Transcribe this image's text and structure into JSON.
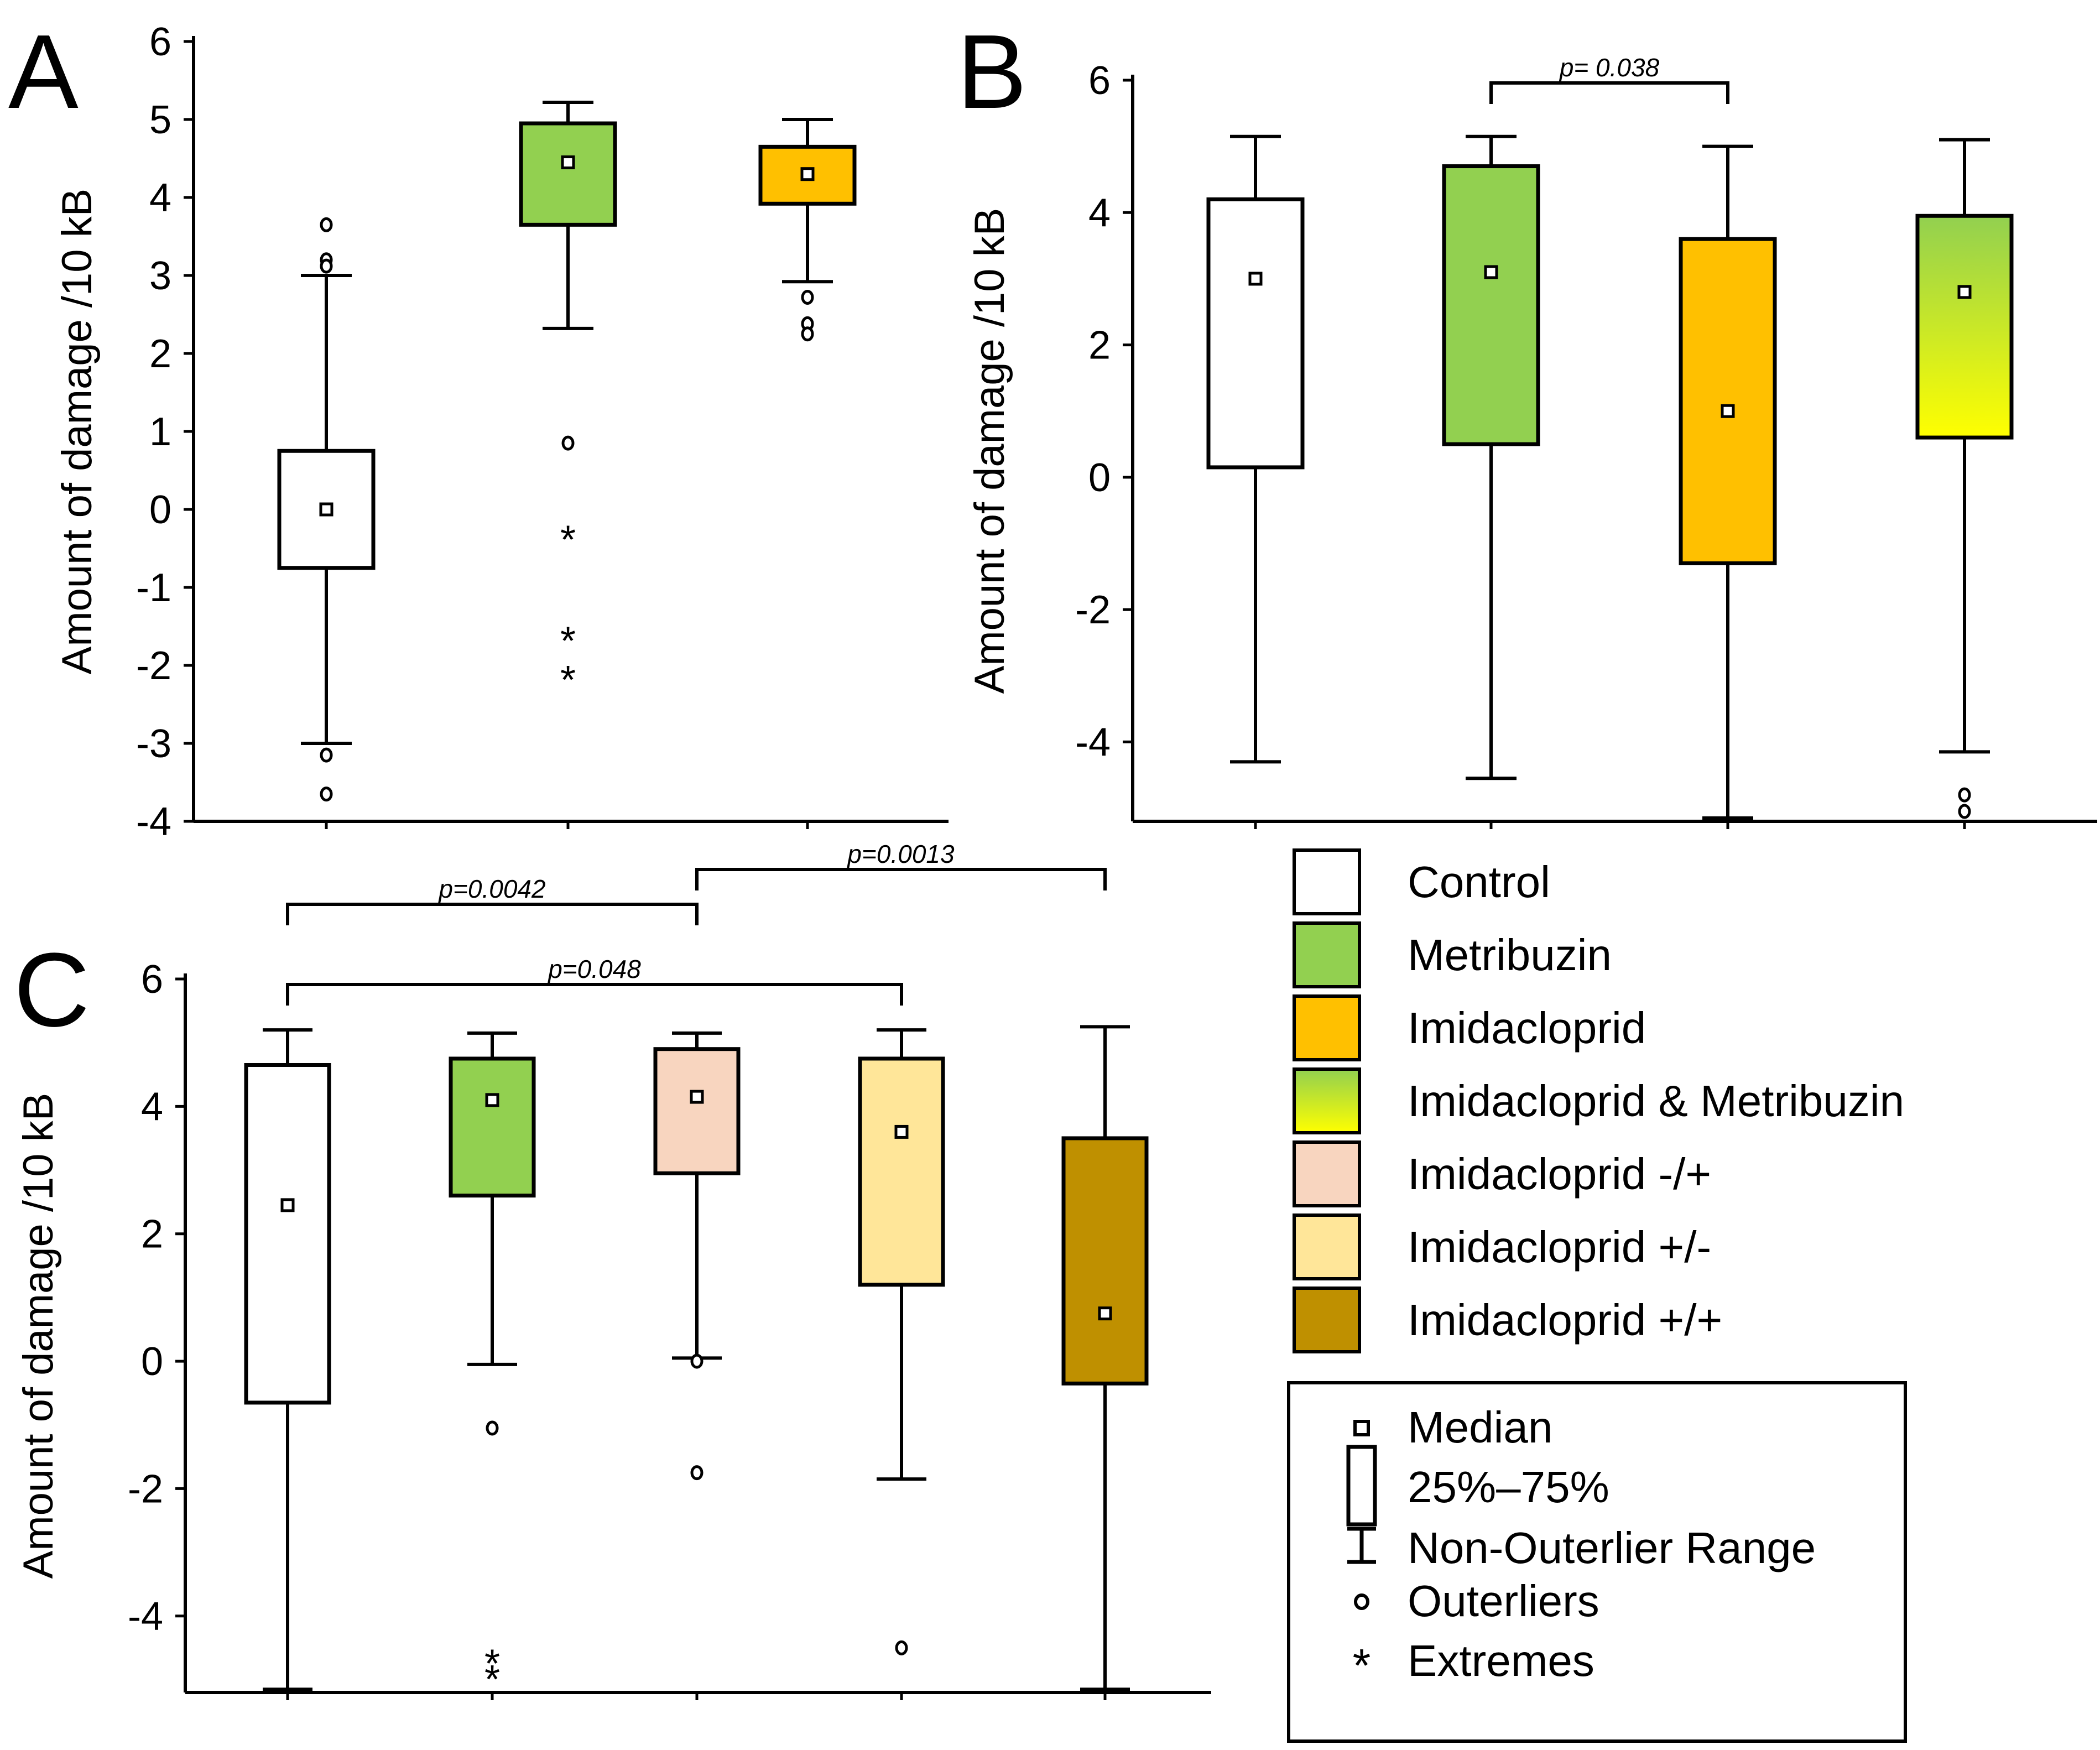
{
  "chart_data": [
    {
      "type": "box",
      "panel": "A",
      "ylabel": "Amount of damage /10 kB",
      "ylim": [
        -4,
        6
      ],
      "yticks": [
        -4,
        -3,
        -2,
        -1,
        0,
        1,
        2,
        3,
        4,
        5,
        6
      ],
      "boxes": [
        {
          "name": "Control",
          "color": "#ffffff",
          "median": 0.0,
          "q1": -0.75,
          "q3": 0.75,
          "whisker_low": -3.0,
          "whisker_high": 3.0,
          "outliers": [
            3.65,
            3.2,
            3.12,
            -3.15,
            -3.65
          ],
          "extremes": []
        },
        {
          "name": "Metribuzin",
          "color": "#92d050",
          "median": 4.45,
          "q1": 3.65,
          "q3": 4.95,
          "whisker_low": 2.32,
          "whisker_high": 5.22,
          "outliers": [
            0.85
          ],
          "extremes": [
            -0.35,
            -1.65,
            -2.15
          ]
        },
        {
          "name": "Imidacloprid",
          "color": "#ffc000",
          "median": 4.3,
          "q1": 3.92,
          "q3": 4.65,
          "whisker_low": 2.92,
          "whisker_high": 5.0,
          "outliers": [
            2.72,
            2.38,
            2.25
          ],
          "extremes": []
        }
      ]
    },
    {
      "type": "box",
      "panel": "B",
      "ylabel": "Amount of damage /10 kB",
      "ylim": [
        -5.2,
        6
      ],
      "yticks": [
        -4,
        -2,
        0,
        2,
        4,
        6
      ],
      "boxes": [
        {
          "name": "Control",
          "color": "#ffffff",
          "median": 3.0,
          "q1": 0.15,
          "q3": 4.2,
          "whisker_low": -4.3,
          "whisker_high": 5.15,
          "outliers": [],
          "extremes": []
        },
        {
          "name": "Metribuzin",
          "color": "#92d050",
          "median": 3.1,
          "q1": 0.5,
          "q3": 4.7,
          "whisker_low": -4.55,
          "whisker_high": 5.15,
          "outliers": [],
          "extremes": []
        },
        {
          "name": "Imidacloprid",
          "color": "#ffc000",
          "median": 1.0,
          "q1": -1.3,
          "q3": 3.6,
          "whisker_low": -5.15,
          "whisker_high": 5.0,
          "outliers": [],
          "extremes": []
        },
        {
          "name": "Imidacloprid & Metribuzin",
          "color": "gradient",
          "median": 2.8,
          "q1": 0.6,
          "q3": 3.95,
          "whisker_low": -4.15,
          "whisker_high": 5.1,
          "outliers": [
            -4.8,
            -5.05
          ],
          "extremes": []
        }
      ],
      "comparisons": [
        {
          "from": 1,
          "to": 2,
          "label": "p= 0.038"
        }
      ]
    },
    {
      "type": "box",
      "panel": "C",
      "ylabel": "Amount of damage /10 kB",
      "ylim": [
        -5.2,
        6
      ],
      "yticks": [
        -4,
        -2,
        0,
        2,
        4,
        6
      ],
      "boxes": [
        {
          "name": "Control",
          "color": "#ffffff",
          "median": 2.45,
          "q1": -0.65,
          "q3": 4.65,
          "whisker_low": -5.15,
          "whisker_high": 5.2,
          "outliers": [],
          "extremes": []
        },
        {
          "name": "Metribuzin",
          "color": "#92d050",
          "median": 4.1,
          "q1": 2.6,
          "q3": 4.75,
          "whisker_low": -0.05,
          "whisker_high": 5.15,
          "outliers": [
            -1.05
          ],
          "extremes": [
            -4.7,
            -4.95
          ]
        },
        {
          "name": "Imidacloprid -/+",
          "color": "#f8d5bf",
          "median": 4.15,
          "q1": 2.95,
          "q3": 4.9,
          "whisker_low": 0.05,
          "whisker_high": 5.15,
          "outliers": [
            0.0,
            -1.75
          ],
          "extremes": []
        },
        {
          "name": "Imidacloprid +/-",
          "color": "#ffe699",
          "median": 3.6,
          "q1": 1.2,
          "q3": 4.75,
          "whisker_low": -1.85,
          "whisker_high": 5.2,
          "outliers": [
            -4.5
          ],
          "extremes": []
        },
        {
          "name": "Imidacloprid +/+",
          "color": "#bf9000",
          "median": 0.75,
          "q1": -0.35,
          "q3": 3.5,
          "whisker_low": -5.15,
          "whisker_high": 5.25,
          "outliers": [],
          "extremes": []
        }
      ],
      "comparisons": [
        {
          "from": 0,
          "to": 2,
          "label": "p=0.0042"
        },
        {
          "from": 2,
          "to": 4,
          "label": "p=0.0013"
        },
        {
          "from": 0,
          "to": 3,
          "label": "p=0.048"
        }
      ]
    }
  ],
  "legend": {
    "groups": [
      {
        "label": "Control",
        "color": "#ffffff"
      },
      {
        "label": "Metribuzin",
        "color": "#92d050"
      },
      {
        "label": "Imidacloprid",
        "color": "#ffc000"
      },
      {
        "label": "Imidacloprid & Metribuzin",
        "color": "gradient"
      },
      {
        "label": "Imidacloprid -/+",
        "color": "#f8d5bf"
      },
      {
        "label": "Imidacloprid +/-",
        "color": "#ffe699"
      },
      {
        "label": "Imidacloprid +/+",
        "color": "#bf9000"
      }
    ],
    "key": [
      {
        "symbol": "median",
        "label": "Median"
      },
      {
        "symbol": "box",
        "label": "25%–75%"
      },
      {
        "symbol": "range",
        "label": "Non-Outerlier Range"
      },
      {
        "symbol": "outlier",
        "label": "Outerliers"
      },
      {
        "symbol": "extreme",
        "label": "Extremes"
      }
    ]
  }
}
